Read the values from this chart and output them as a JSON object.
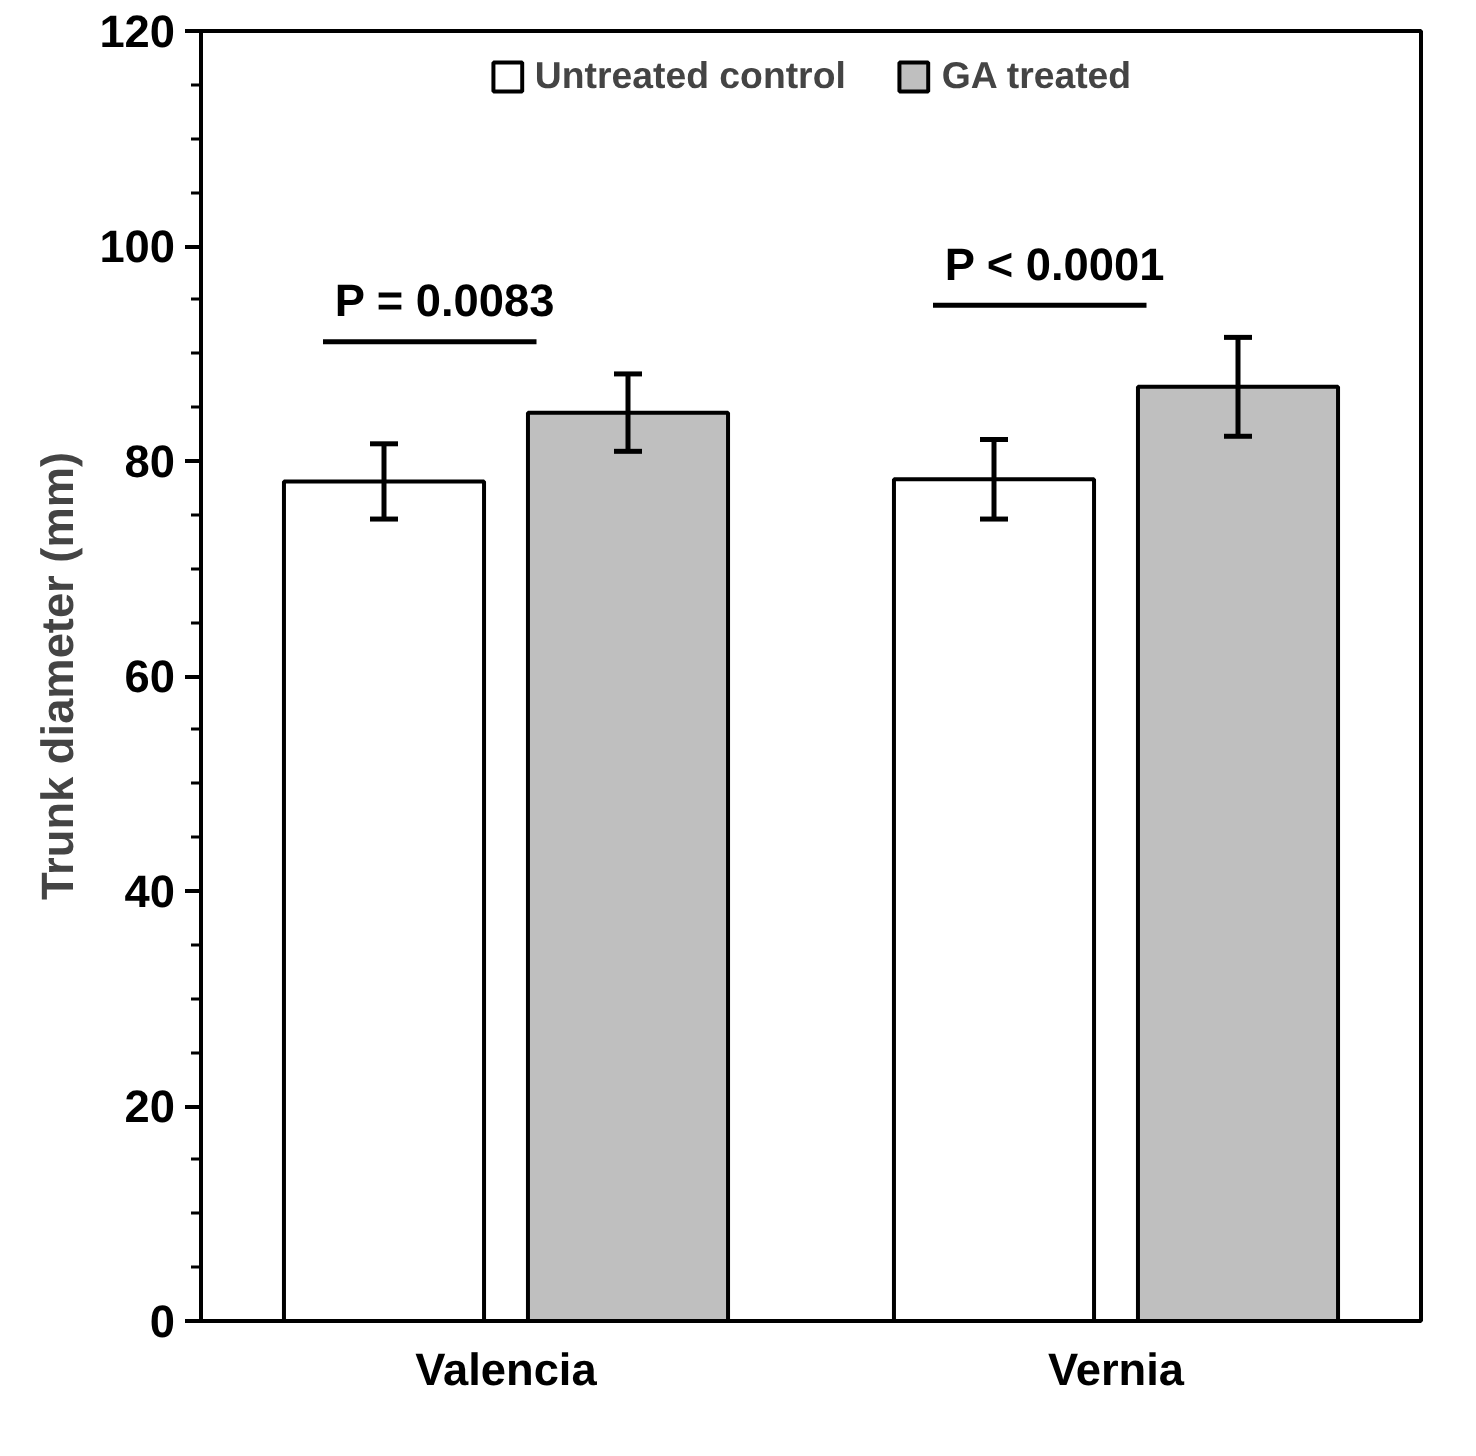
{
  "chart_data": {
    "type": "bar",
    "ylabel": "Trunk diameter (mm)",
    "categories": [
      "Valencia",
      "Vernia"
    ],
    "series": [
      {
        "name": "Untreated control",
        "color": "#ffffff",
        "values": [
          78.1,
          78.3
        ],
        "errors": [
          3.5,
          3.7
        ]
      },
      {
        "name": "GA treated",
        "color": "#bfbfbf",
        "values": [
          84.5,
          86.9
        ],
        "errors": [
          3.6,
          4.6
        ]
      }
    ],
    "ylim": [
      0,
      120
    ],
    "yticks": [
      0,
      20,
      40,
      60,
      80,
      100,
      120
    ],
    "grid": false,
    "legend": "top",
    "annotations": [
      "P = 0.0083",
      "P < 0.0001"
    ]
  }
}
